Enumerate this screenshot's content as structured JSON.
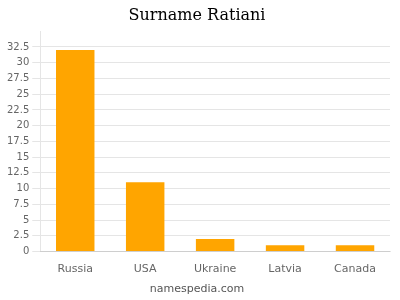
{
  "chart_data": {
    "type": "bar",
    "title": "Surname Ratiani",
    "categories": [
      "Russia",
      "USA",
      "Ukraine",
      "Latvia",
      "Canada"
    ],
    "values": [
      32,
      11,
      2,
      1,
      1
    ],
    "color": "#FFA500",
    "ylim": [
      0,
      35
    ],
    "yticks": [
      0,
      2.5,
      5,
      7.5,
      10,
      12.5,
      15,
      17.5,
      20,
      22.5,
      25,
      27.5,
      30,
      32.5
    ],
    "grid": true,
    "annotations": [
      "namespedia.com"
    ]
  }
}
